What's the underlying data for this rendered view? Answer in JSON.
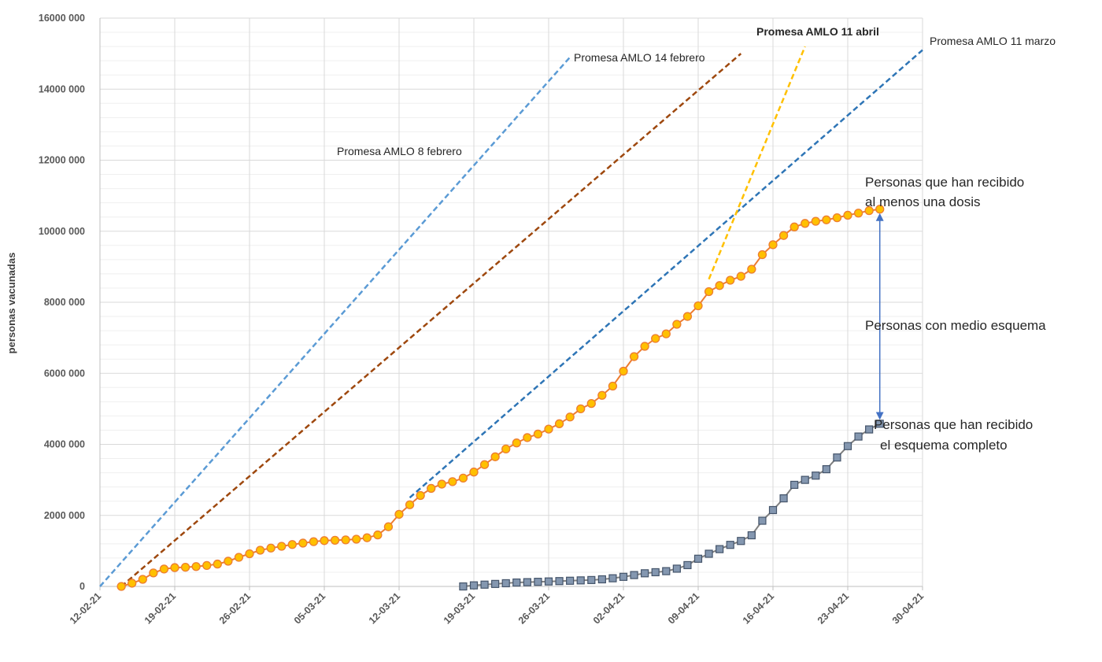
{
  "chart_data": {
    "type": "line",
    "ylabel": "personas vacunadas",
    "ylim": [
      0,
      16000000
    ],
    "ytick_values": [
      0,
      2000000,
      4000000,
      6000000,
      8000000,
      10000000,
      12000000,
      14000000,
      16000000
    ],
    "ytick_labels": [
      "0",
      "2000 000",
      "4000 000",
      "6000 000",
      "8000 000",
      "10000 000",
      "12000 000",
      "14000 000",
      "16000 000"
    ],
    "x_range_days": [
      0,
      77
    ],
    "x_start_date": "12-02-21",
    "xtick_days": [
      0,
      7,
      14,
      21,
      28,
      35,
      42,
      49,
      56,
      63,
      70,
      77
    ],
    "xtick_labels": [
      "12-02-21",
      "19-02-21",
      "26-02-21",
      "05-03-21",
      "12-03-21",
      "19-03-21",
      "26-03-21",
      "02-04-21",
      "09-04-21",
      "16-04-21",
      "23-04-21",
      "30-04-21"
    ],
    "grid": true,
    "series": [
      {
        "name": "Personas que han recibido al menos una dosis",
        "color": "#ED7D31",
        "marker_fill": "#FFC000",
        "marker": "circle",
        "x": [
          2,
          3,
          4,
          5,
          6,
          7,
          8,
          9,
          10,
          11,
          12,
          13,
          14,
          15,
          16,
          17,
          18,
          19,
          20,
          21,
          22,
          23,
          24,
          25,
          26,
          27,
          28,
          29,
          30,
          31,
          32,
          33,
          34,
          35,
          36,
          37,
          38,
          39,
          40,
          41,
          42,
          43,
          44,
          45,
          46,
          47,
          48,
          49,
          50,
          51,
          52,
          53,
          54,
          55,
          56,
          57,
          58,
          59,
          60,
          61,
          62,
          63,
          64,
          65,
          66,
          67,
          68,
          69,
          70,
          71,
          72,
          73
        ],
        "values": [
          0,
          90000,
          200000,
          380000,
          490000,
          530000,
          540000,
          560000,
          590000,
          630000,
          710000,
          820000,
          920000,
          1020000,
          1080000,
          1130000,
          1180000,
          1220000,
          1260000,
          1290000,
          1300000,
          1310000,
          1330000,
          1370000,
          1450000,
          1680000,
          2030000,
          2300000,
          2560000,
          2760000,
          2880000,
          2950000,
          3050000,
          3220000,
          3430000,
          3650000,
          3870000,
          4040000,
          4190000,
          4290000,
          4430000,
          4580000,
          4770000,
          5000000,
          5150000,
          5380000,
          5640000,
          6060000,
          6470000,
          6760000,
          6980000,
          7110000,
          7380000,
          7600000,
          7900000,
          8300000,
          8470000,
          8620000,
          8730000,
          8930000,
          9340000,
          9620000,
          9880000,
          10120000,
          10220000,
          10280000,
          10320000,
          10380000,
          10450000,
          10510000,
          10580000,
          10620000
        ]
      },
      {
        "name": "Personas que han recibido el esquema completo",
        "color": "#808080",
        "marker_fill": "#8497B0",
        "marker": "square",
        "x": [
          34,
          35,
          36,
          37,
          38,
          39,
          40,
          41,
          42,
          43,
          44,
          45,
          46,
          47,
          48,
          49,
          50,
          51,
          52,
          53,
          54,
          55,
          56,
          57,
          58,
          59,
          60,
          61,
          62,
          63,
          64,
          65,
          66,
          67,
          68,
          69,
          70,
          71,
          72,
          73
        ],
        "values": [
          0,
          30000,
          50000,
          70000,
          90000,
          110000,
          120000,
          130000,
          140000,
          150000,
          160000,
          170000,
          180000,
          200000,
          230000,
          270000,
          320000,
          370000,
          400000,
          430000,
          500000,
          600000,
          780000,
          920000,
          1050000,
          1170000,
          1280000,
          1440000,
          1850000,
          2150000,
          2480000,
          2860000,
          3000000,
          3120000,
          3300000,
          3630000,
          3950000,
          4220000,
          4420000,
          4580000
        ]
      }
    ],
    "projections": [
      {
        "name": "Promesa AMLO  8 febrero",
        "color": "#5B9BD5",
        "x": [
          0,
          44
        ],
        "values": [
          0,
          14900000
        ]
      },
      {
        "name": "Promesa AMLO  14 febrero",
        "color": "#9E480E",
        "x": [
          2,
          60
        ],
        "values": [
          0,
          15000000
        ]
      },
      {
        "name": "Promesa AMLO  11 marzo",
        "color": "#2E75B6",
        "x": [
          29,
          77
        ],
        "values": [
          2500000,
          15100000
        ]
      },
      {
        "name": "Promesa AMLO  11 abril",
        "color": "#FFC000",
        "x": [
          57,
          66
        ],
        "values": [
          8650000,
          15200000
        ]
      }
    ],
    "annotations": [
      {
        "name": "promesa-8-febrero",
        "text": "Promesa AMLO  8 febrero"
      },
      {
        "name": "promesa-14-febrero",
        "text": "Promesa AMLO  14 febrero"
      },
      {
        "name": "promesa-11-abril",
        "text": "Promesa AMLO  11 abril"
      },
      {
        "name": "promesa-11-marzo",
        "text": "Promesa AMLO  11 marzo"
      },
      {
        "name": "una-dosis-line1",
        "text": "Personas que han recibido"
      },
      {
        "name": "una-dosis-line2",
        "text": "al menos una dosis"
      },
      {
        "name": "medio-esquema",
        "text": "Personas con medio esquema"
      },
      {
        "name": "esquema-line1",
        "text": "Personas que han recibido"
      },
      {
        "name": "esquema-line2",
        "text": "el esquema completo"
      }
    ],
    "gap_arrow": {
      "x": 73,
      "from": 4580000,
      "to": 10620000,
      "color": "#4472C4"
    }
  }
}
